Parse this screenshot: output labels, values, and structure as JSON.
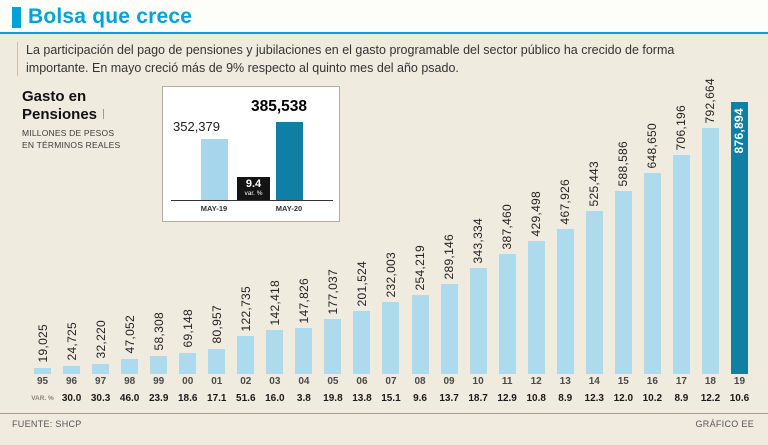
{
  "colors": {
    "accent_cyan": "#00a3d9",
    "bar_light": "#aedaee",
    "bar_dark": "#0f7fa6",
    "background": "#f0ebdf",
    "badge_black": "#141414"
  },
  "header": {
    "title": "Bolsa que crece",
    "subtitle": "La participación del pago de pensiones y jubilaciones en el gasto programable del sector público ha crecido de forma importante. En mayo creció más de 9% respecto al quinto mes del año psado."
  },
  "chart_label": {
    "title_line1": "Gasto en",
    "title_line2": "Pensiones",
    "units_line1": "MILLONES DE PESOS",
    "units_line2": "EN TÉRMINOS REALES"
  },
  "inset": {
    "bars": [
      {
        "label": "MAY-19",
        "value": "352,379"
      },
      {
        "label": "MAY-20",
        "value": "385,538"
      }
    ],
    "badge_value": "9.4",
    "badge_label": "var. %"
  },
  "chart_data": {
    "type": "bar",
    "title": "Gasto en Pensiones",
    "ylabel": "Millones de pesos en términos reales",
    "categories": [
      "95",
      "96",
      "97",
      "98",
      "99",
      "00",
      "01",
      "02",
      "03",
      "04",
      "05",
      "06",
      "07",
      "08",
      "09",
      "10",
      "11",
      "12",
      "13",
      "14",
      "15",
      "16",
      "17",
      "18",
      "19"
    ],
    "values": [
      19025,
      24725,
      32220,
      47052,
      58308,
      69148,
      80957,
      122735,
      142418,
      147826,
      177037,
      201524,
      232003,
      254219,
      289146,
      343334,
      387460,
      429498,
      467926,
      525443,
      588586,
      648650,
      706196,
      792664,
      876894
    ],
    "value_labels": [
      "19,025",
      "24,725",
      "32,220",
      "47,052",
      "58,308",
      "69,148",
      "80,957",
      "122,735",
      "142,418",
      "147,826",
      "177,037",
      "201,524",
      "232,003",
      "254,219",
      "289,146",
      "343,334",
      "387,460",
      "429,498",
      "467,926",
      "525,443",
      "588,586",
      "648,650",
      "706,196",
      "792,664",
      "876,894"
    ],
    "highlight_index": 24,
    "ylim": [
      0,
      876894
    ],
    "legend_position": "none",
    "grid": false,
    "var_pct_label": "VAR. %",
    "var_pct": [
      "",
      "30.0",
      "30.3",
      "46.0",
      "23.9",
      "18.6",
      "17.1",
      "51.6",
      "16.0",
      "3.8",
      "19.8",
      "13.8",
      "15.1",
      "9.6",
      "13.7",
      "18.7",
      "12.9",
      "10.8",
      "8.9",
      "12.3",
      "12.0",
      "10.2",
      "8.9",
      "12.2",
      "10.6"
    ],
    "inset": {
      "categories": [
        "MAY-19",
        "MAY-20"
      ],
      "values": [
        352379,
        385538
      ],
      "var_pct": 9.4
    }
  },
  "footer": {
    "source": "FUENTE: SHCP",
    "credit": "GRÁFICO EE"
  }
}
